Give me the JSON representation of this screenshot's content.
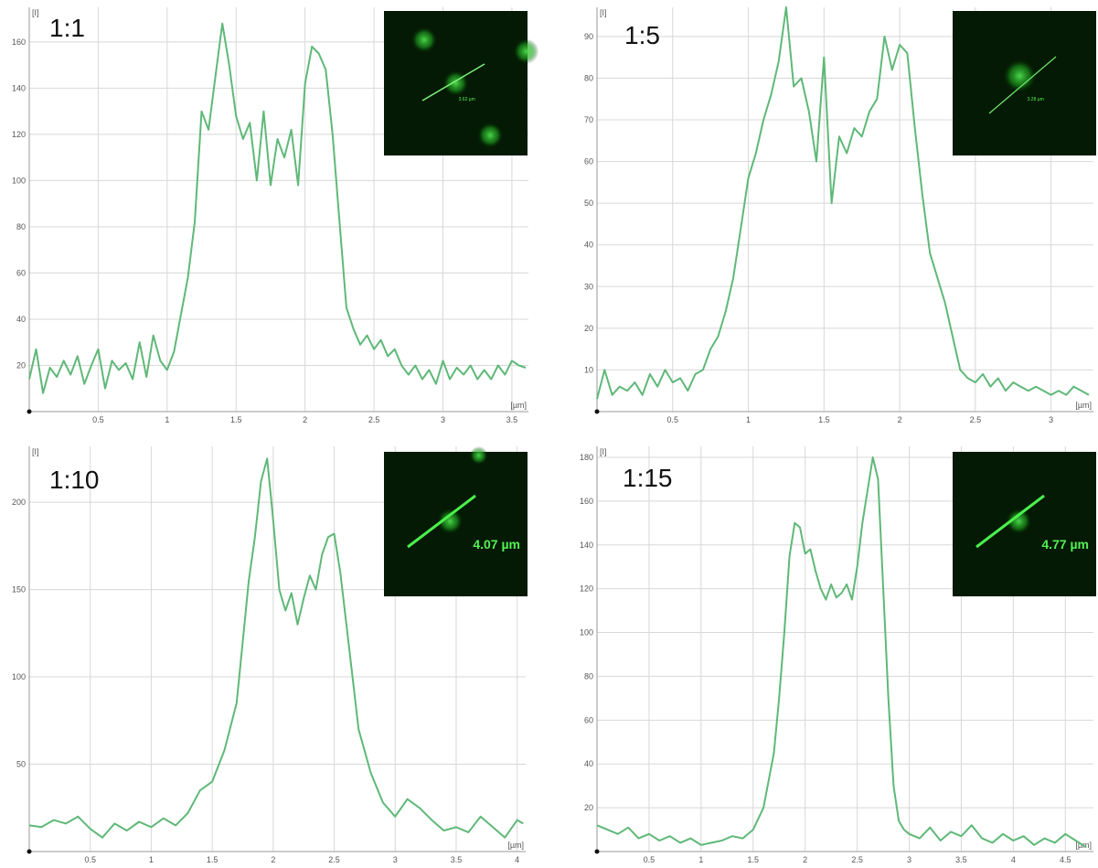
{
  "chart_data": [
    {
      "type": "line",
      "title": "1:1",
      "ylabel": "[I]",
      "xlabel": "[µm]",
      "xlim": [
        0,
        3.62
      ],
      "ylim": [
        0,
        175
      ],
      "xticks": [
        "0.5",
        "1",
        "1.5",
        "2",
        "2.5",
        "3",
        "3.5"
      ],
      "yticks": [
        "20",
        "40",
        "60",
        "80",
        "100",
        "120",
        "140",
        "160"
      ],
      "grid": true,
      "inset_scale_label": "3.62 µm",
      "series": [
        {
          "color": "#5fb878",
          "x": [
            0,
            0.05,
            0.1,
            0.15,
            0.2,
            0.25,
            0.3,
            0.35,
            0.4,
            0.45,
            0.5,
            0.55,
            0.6,
            0.65,
            0.7,
            0.75,
            0.8,
            0.85,
            0.9,
            0.95,
            1.0,
            1.05,
            1.1,
            1.15,
            1.2,
            1.25,
            1.3,
            1.35,
            1.4,
            1.45,
            1.5,
            1.55,
            1.6,
            1.65,
            1.7,
            1.75,
            1.8,
            1.85,
            1.9,
            1.95,
            2.0,
            2.05,
            2.1,
            2.15,
            2.2,
            2.25,
            2.3,
            2.35,
            2.4,
            2.45,
            2.5,
            2.55,
            2.6,
            2.65,
            2.7,
            2.75,
            2.8,
            2.85,
            2.9,
            2.95,
            3.0,
            3.05,
            3.1,
            3.15,
            3.2,
            3.25,
            3.3,
            3.35,
            3.4,
            3.45,
            3.5,
            3.55,
            3.6
          ],
          "values": [
            14,
            27,
            8,
            19,
            15,
            22,
            16,
            24,
            12,
            20,
            27,
            10,
            22,
            18,
            21,
            14,
            30,
            15,
            33,
            22,
            18,
            26,
            42,
            58,
            82,
            130,
            122,
            145,
            168,
            150,
            128,
            118,
            125,
            100,
            130,
            98,
            118,
            110,
            122,
            98,
            142,
            158,
            155,
            148,
            120,
            82,
            45,
            36,
            29,
            33,
            27,
            31,
            24,
            27,
            20,
            16,
            20,
            14,
            18,
            12,
            22,
            14,
            19,
            16,
            20,
            14,
            18,
            14,
            20,
            16,
            22,
            20,
            19
          ]
        }
      ]
    },
    {
      "type": "line",
      "title": "1:5",
      "ylabel": "[I]",
      "xlabel": "[µm]",
      "xlim": [
        0,
        3.28
      ],
      "ylim": [
        0,
        97
      ],
      "xticks": [
        "0.5",
        "1",
        "1.5",
        "2",
        "2.5",
        "3"
      ],
      "yticks": [
        "10",
        "20",
        "30",
        "40",
        "50",
        "60",
        "70",
        "80",
        "90"
      ],
      "grid": true,
      "inset_scale_label": "3.28 µm",
      "series": [
        {
          "color": "#5fb878",
          "x": [
            0,
            0.05,
            0.1,
            0.15,
            0.2,
            0.25,
            0.3,
            0.35,
            0.4,
            0.45,
            0.5,
            0.55,
            0.6,
            0.65,
            0.7,
            0.75,
            0.8,
            0.85,
            0.9,
            0.95,
            1.0,
            1.05,
            1.1,
            1.15,
            1.2,
            1.25,
            1.3,
            1.35,
            1.4,
            1.45,
            1.5,
            1.55,
            1.6,
            1.65,
            1.7,
            1.75,
            1.8,
            1.85,
            1.9,
            1.95,
            2.0,
            2.05,
            2.1,
            2.15,
            2.2,
            2.25,
            2.3,
            2.35,
            2.4,
            2.45,
            2.5,
            2.55,
            2.6,
            2.65,
            2.7,
            2.75,
            2.8,
            2.85,
            2.9,
            2.95,
            3.0,
            3.05,
            3.1,
            3.15,
            3.2,
            3.25
          ],
          "values": [
            3,
            10,
            4,
            6,
            5,
            7,
            4,
            9,
            6,
            10,
            7,
            8,
            5,
            9,
            10,
            15,
            18,
            24,
            32,
            44,
            56,
            62,
            70,
            76,
            84,
            97,
            78,
            80,
            72,
            60,
            85,
            50,
            66,
            62,
            68,
            66,
            72,
            75,
            90,
            82,
            88,
            86,
            68,
            52,
            38,
            32,
            26,
            18,
            10,
            8,
            7,
            9,
            6,
            8,
            5,
            7,
            6,
            5,
            6,
            5,
            4,
            5,
            4,
            6,
            5,
            4
          ]
        }
      ]
    },
    {
      "type": "line",
      "title": "1:10",
      "ylabel": "[I]",
      "xlabel": "[µm]",
      "xlim": [
        0,
        4.07
      ],
      "ylim": [
        0,
        232
      ],
      "xticks": [
        "0.5",
        "1",
        "1.5",
        "2",
        "2.5",
        "3",
        "3.5",
        "4"
      ],
      "yticks": [
        "50",
        "100",
        "150",
        "200"
      ],
      "grid": true,
      "inset_scale_label": "4.07 µm",
      "series": [
        {
          "color": "#5fb878",
          "x": [
            0,
            0.1,
            0.2,
            0.3,
            0.4,
            0.5,
            0.6,
            0.7,
            0.8,
            0.9,
            1.0,
            1.1,
            1.2,
            1.3,
            1.4,
            1.5,
            1.6,
            1.7,
            1.75,
            1.8,
            1.85,
            1.9,
            1.95,
            2.0,
            2.05,
            2.1,
            2.15,
            2.2,
            2.25,
            2.3,
            2.35,
            2.4,
            2.45,
            2.5,
            2.55,
            2.6,
            2.65,
            2.7,
            2.8,
            2.9,
            3.0,
            3.1,
            3.2,
            3.3,
            3.4,
            3.5,
            3.6,
            3.7,
            3.8,
            3.9,
            4.0,
            4.05
          ],
          "values": [
            15,
            14,
            18,
            16,
            20,
            13,
            8,
            16,
            12,
            17,
            14,
            19,
            15,
            22,
            35,
            40,
            58,
            85,
            120,
            155,
            180,
            212,
            225,
            190,
            150,
            138,
            148,
            130,
            145,
            158,
            150,
            170,
            180,
            182,
            160,
            130,
            100,
            70,
            45,
            28,
            20,
            30,
            25,
            18,
            12,
            14,
            11,
            20,
            14,
            8,
            18,
            16
          ]
        }
      ]
    },
    {
      "type": "line",
      "title": "1:15",
      "ylabel": "[I]",
      "xlabel": "[µm]",
      "xlim": [
        0,
        4.77
      ],
      "ylim": [
        0,
        185
      ],
      "xticks": [
        "0.5",
        "1",
        "1.5",
        "2",
        "2.5",
        "3",
        "3.5",
        "4",
        "4.5"
      ],
      "yticks": [
        "20",
        "40",
        "60",
        "80",
        "100",
        "120",
        "140",
        "160",
        "180"
      ],
      "grid": true,
      "inset_scale_label": "4.77 µm",
      "series": [
        {
          "color": "#5fb878",
          "x": [
            0,
            0.1,
            0.2,
            0.3,
            0.4,
            0.5,
            0.6,
            0.7,
            0.8,
            0.9,
            1.0,
            1.1,
            1.2,
            1.3,
            1.4,
            1.5,
            1.6,
            1.7,
            1.75,
            1.8,
            1.85,
            1.9,
            1.95,
            2.0,
            2.05,
            2.1,
            2.15,
            2.2,
            2.25,
            2.3,
            2.35,
            2.4,
            2.45,
            2.5,
            2.55,
            2.6,
            2.65,
            2.7,
            2.75,
            2.8,
            2.85,
            2.9,
            2.95,
            3.0,
            3.1,
            3.2,
            3.3,
            3.4,
            3.5,
            3.6,
            3.7,
            3.8,
            3.9,
            4.0,
            4.1,
            4.2,
            4.3,
            4.4,
            4.5,
            4.6,
            4.7
          ],
          "values": [
            12,
            10,
            8,
            11,
            6,
            8,
            5,
            7,
            4,
            6,
            3,
            4,
            5,
            7,
            6,
            10,
            20,
            45,
            70,
            100,
            135,
            150,
            148,
            136,
            138,
            128,
            120,
            115,
            122,
            116,
            118,
            122,
            115,
            130,
            150,
            165,
            180,
            170,
            120,
            70,
            30,
            14,
            10,
            8,
            6,
            11,
            5,
            9,
            7,
            12,
            6,
            4,
            8,
            5,
            7,
            3,
            6,
            4,
            8,
            5,
            2
          ]
        }
      ]
    }
  ]
}
